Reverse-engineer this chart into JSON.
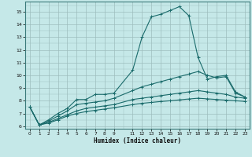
{
  "xlabel": "Humidex (Indice chaleur)",
  "bg_color": "#c5e8e8",
  "line_color": "#1a6b6b",
  "grid_color": "#9dbdbd",
  "xlim": [
    -0.5,
    23.5
  ],
  "ylim": [
    5.8,
    15.8
  ],
  "yticks": [
    6,
    7,
    8,
    9,
    10,
    11,
    12,
    13,
    14,
    15
  ],
  "xticks": [
    0,
    1,
    2,
    3,
    4,
    5,
    6,
    7,
    8,
    9,
    11,
    12,
    13,
    14,
    15,
    16,
    17,
    18,
    19,
    20,
    21,
    22,
    23
  ],
  "line1_x": [
    0,
    1,
    2,
    3,
    4,
    5,
    6,
    7,
    8,
    9,
    11,
    12,
    13,
    14,
    15,
    16,
    17,
    18,
    19,
    20,
    21,
    22,
    23
  ],
  "line1_y": [
    7.5,
    6.1,
    6.5,
    7.0,
    7.4,
    8.1,
    8.1,
    8.5,
    8.5,
    8.6,
    10.4,
    13.0,
    14.6,
    14.8,
    15.1,
    15.4,
    14.7,
    11.4,
    9.7,
    9.9,
    10.0,
    8.7,
    8.3
  ],
  "line2_x": [
    0,
    1,
    2,
    3,
    4,
    5,
    6,
    7,
    8,
    9,
    11,
    12,
    13,
    14,
    15,
    16,
    17,
    18,
    19,
    20,
    21,
    22,
    23
  ],
  "line2_y": [
    7.5,
    6.1,
    6.4,
    6.8,
    7.2,
    7.7,
    7.8,
    7.9,
    8.0,
    8.2,
    8.8,
    9.1,
    9.3,
    9.5,
    9.7,
    9.9,
    10.1,
    10.3,
    10.0,
    9.8,
    9.9,
    8.6,
    8.3
  ],
  "line3_x": [
    0,
    1,
    2,
    3,
    4,
    5,
    6,
    7,
    8,
    9,
    11,
    12,
    13,
    14,
    15,
    16,
    17,
    18,
    19,
    20,
    21,
    22,
    23
  ],
  "line3_y": [
    7.5,
    6.1,
    6.3,
    6.6,
    6.9,
    7.2,
    7.4,
    7.5,
    7.6,
    7.7,
    8.1,
    8.2,
    8.3,
    8.4,
    8.5,
    8.6,
    8.7,
    8.8,
    8.7,
    8.6,
    8.5,
    8.3,
    8.2
  ],
  "line4_x": [
    0,
    1,
    2,
    3,
    4,
    5,
    6,
    7,
    8,
    9,
    11,
    12,
    13,
    14,
    15,
    16,
    17,
    18,
    19,
    20,
    21,
    22,
    23
  ],
  "line4_y": [
    7.5,
    6.1,
    6.25,
    6.5,
    6.8,
    7.0,
    7.15,
    7.25,
    7.35,
    7.45,
    7.7,
    7.8,
    7.87,
    7.94,
    8.0,
    8.07,
    8.14,
    8.2,
    8.15,
    8.1,
    8.05,
    8.0,
    7.95
  ]
}
